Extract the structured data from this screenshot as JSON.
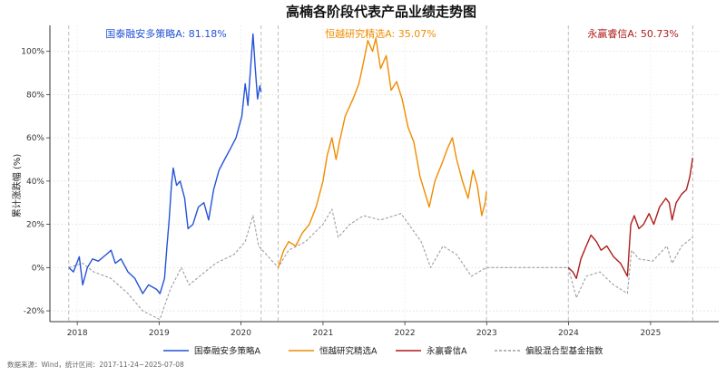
{
  "chart_data": {
    "type": "line",
    "title": "高楠各阶段代表产品业绩走势图",
    "ylabel": "累计涨跌幅 (%)",
    "ylim": [
      -0.25,
      1.12
    ],
    "xlim": [
      "2017-09-01",
      "2025-11-01"
    ],
    "x_ticks": [
      "2018",
      "2019",
      "2020",
      "2021",
      "2022",
      "2023",
      "2024",
      "2025"
    ],
    "y_ticks": [
      {
        "value": -0.2,
        "label": "-20%"
      },
      {
        "value": 0.0,
        "label": "0%"
      },
      {
        "value": 0.2,
        "label": "20%"
      },
      {
        "value": 0.4,
        "label": "40%"
      },
      {
        "value": 0.6,
        "label": "60%"
      },
      {
        "value": 0.8,
        "label": "80%"
      },
      {
        "value": 1.0,
        "label": "100%"
      }
    ],
    "grid": true,
    "legend_position": "bottom",
    "phase_boundaries": [
      "2017-11-24",
      "2020-03-31",
      "2020-06-15",
      "2022-12-31",
      "2023-12-31",
      "2025-07-08"
    ],
    "annotations": [
      {
        "label": "国泰融安多策略A: 81.18%",
        "color": "#2453d6",
        "anchor_x": "2019-02-01"
      },
      {
        "label": "恒越研究精选A: 35.07%",
        "color": "#f08c00",
        "anchor_x": "2021-09-15"
      },
      {
        "label": "永赢睿信A: 50.73%",
        "color": "#b01c1c",
        "anchor_x": "2024-10-15"
      }
    ],
    "series": [
      {
        "name": "国泰融安多策略A",
        "color": "#2453d6",
        "style": "solid",
        "points": [
          [
            "2017-11-24",
            0.0
          ],
          [
            "2017-12-15",
            -0.02
          ],
          [
            "2018-01-10",
            0.05
          ],
          [
            "2018-01-25",
            -0.08
          ],
          [
            "2018-02-15",
            0.0
          ],
          [
            "2018-03-10",
            0.04
          ],
          [
            "2018-04-05",
            0.03
          ],
          [
            "2018-05-10",
            0.06
          ],
          [
            "2018-06-01",
            0.08
          ],
          [
            "2018-06-20",
            0.02
          ],
          [
            "2018-07-15",
            0.04
          ],
          [
            "2018-08-15",
            -0.02
          ],
          [
            "2018-09-15",
            -0.05
          ],
          [
            "2018-10-20",
            -0.12
          ],
          [
            "2018-11-15",
            -0.08
          ],
          [
            "2018-12-20",
            -0.1
          ],
          [
            "2019-01-05",
            -0.12
          ],
          [
            "2019-01-25",
            -0.05
          ],
          [
            "2019-02-05",
            0.1
          ],
          [
            "2019-02-15",
            0.22
          ],
          [
            "2019-02-25",
            0.38
          ],
          [
            "2019-03-05",
            0.46
          ],
          [
            "2019-03-20",
            0.38
          ],
          [
            "2019-04-05",
            0.4
          ],
          [
            "2019-04-25",
            0.32
          ],
          [
            "2019-05-10",
            0.18
          ],
          [
            "2019-06-01",
            0.2
          ],
          [
            "2019-06-25",
            0.28
          ],
          [
            "2019-07-20",
            0.3
          ],
          [
            "2019-08-10",
            0.22
          ],
          [
            "2019-09-01",
            0.36
          ],
          [
            "2019-09-25",
            0.45
          ],
          [
            "2019-10-20",
            0.5
          ],
          [
            "2019-11-15",
            0.55
          ],
          [
            "2019-12-10",
            0.6
          ],
          [
            "2020-01-05",
            0.7
          ],
          [
            "2020-01-20",
            0.85
          ],
          [
            "2020-02-01",
            0.75
          ],
          [
            "2020-02-15",
            0.95
          ],
          [
            "2020-02-24",
            1.08
          ],
          [
            "2020-03-05",
            0.92
          ],
          [
            "2020-03-15",
            0.78
          ],
          [
            "2020-03-25",
            0.84
          ],
          [
            "2020-03-31",
            0.8118
          ]
        ]
      },
      {
        "name": "恒越研究精选A",
        "color": "#f08c00",
        "style": "solid",
        "points": [
          [
            "2020-06-15",
            0.0
          ],
          [
            "2020-07-10",
            0.08
          ],
          [
            "2020-08-01",
            0.12
          ],
          [
            "2020-09-01",
            0.1
          ],
          [
            "2020-10-01",
            0.16
          ],
          [
            "2020-11-01",
            0.2
          ],
          [
            "2020-12-01",
            0.28
          ],
          [
            "2021-01-01",
            0.4
          ],
          [
            "2021-01-20",
            0.52
          ],
          [
            "2021-02-10",
            0.6
          ],
          [
            "2021-02-28",
            0.5
          ],
          [
            "2021-03-15",
            0.58
          ],
          [
            "2021-04-10",
            0.7
          ],
          [
            "2021-05-15",
            0.78
          ],
          [
            "2021-06-10",
            0.85
          ],
          [
            "2021-07-01",
            0.95
          ],
          [
            "2021-07-20",
            1.05
          ],
          [
            "2021-08-10",
            1.0
          ],
          [
            "2021-08-25",
            1.06
          ],
          [
            "2021-09-15",
            0.92
          ],
          [
            "2021-10-10",
            0.98
          ],
          [
            "2021-11-01",
            0.82
          ],
          [
            "2021-11-25",
            0.86
          ],
          [
            "2021-12-20",
            0.78
          ],
          [
            "2022-01-15",
            0.65
          ],
          [
            "2022-02-10",
            0.58
          ],
          [
            "2022-03-10",
            0.42
          ],
          [
            "2022-04-20",
            0.28
          ],
          [
            "2022-05-15",
            0.4
          ],
          [
            "2022-06-15",
            0.48
          ],
          [
            "2022-07-10",
            0.55
          ],
          [
            "2022-08-01",
            0.6
          ],
          [
            "2022-08-20",
            0.5
          ],
          [
            "2022-09-15",
            0.4
          ],
          [
            "2022-10-10",
            0.32
          ],
          [
            "2022-11-01",
            0.45
          ],
          [
            "2022-11-20",
            0.38
          ],
          [
            "2022-12-10",
            0.24
          ],
          [
            "2022-12-25",
            0.3
          ],
          [
            "2022-12-31",
            0.3507
          ]
        ]
      },
      {
        "name": "永赢睿信A",
        "color": "#b01c1c",
        "style": "solid",
        "points": [
          [
            "2023-12-31",
            0.0
          ],
          [
            "2024-01-20",
            -0.02
          ],
          [
            "2024-02-05",
            -0.05
          ],
          [
            "2024-02-25",
            0.04
          ],
          [
            "2024-03-20",
            0.1
          ],
          [
            "2024-04-10",
            0.15
          ],
          [
            "2024-05-05",
            0.12
          ],
          [
            "2024-05-25",
            0.08
          ],
          [
            "2024-06-20",
            0.1
          ],
          [
            "2024-07-20",
            0.05
          ],
          [
            "2024-08-20",
            0.02
          ],
          [
            "2024-09-20",
            -0.04
          ],
          [
            "2024-10-05",
            0.2
          ],
          [
            "2024-10-20",
            0.24
          ],
          [
            "2024-11-10",
            0.18
          ],
          [
            "2024-12-01",
            0.2
          ],
          [
            "2024-12-25",
            0.25
          ],
          [
            "2025-01-15",
            0.2
          ],
          [
            "2025-02-10",
            0.28
          ],
          [
            "2025-03-10",
            0.32
          ],
          [
            "2025-03-25",
            0.3
          ],
          [
            "2025-04-07",
            0.22
          ],
          [
            "2025-04-25",
            0.3
          ],
          [
            "2025-05-20",
            0.34
          ],
          [
            "2025-06-10",
            0.36
          ],
          [
            "2025-06-25",
            0.42
          ],
          [
            "2025-07-08",
            0.5073
          ]
        ]
      },
      {
        "name": "偏股混合型基金指数",
        "color": "#9e9e9e",
        "style": "dashed",
        "points": [
          [
            "2017-11-24",
            0.0
          ],
          [
            "2018-01-25",
            0.02
          ],
          [
            "2018-03-15",
            -0.02
          ],
          [
            "2018-06-01",
            -0.05
          ],
          [
            "2018-08-15",
            -0.12
          ],
          [
            "2018-10-20",
            -0.2
          ],
          [
            "2019-01-04",
            -0.24
          ],
          [
            "2019-02-20",
            -0.1
          ],
          [
            "2019-04-10",
            0.0
          ],
          [
            "2019-05-15",
            -0.08
          ],
          [
            "2019-07-01",
            -0.04
          ],
          [
            "2019-09-10",
            0.02
          ],
          [
            "2019-12-01",
            0.06
          ],
          [
            "2020-01-20",
            0.12
          ],
          [
            "2020-02-24",
            0.24
          ],
          [
            "2020-03-20",
            0.1
          ],
          [
            "2020-06-15",
            0.0
          ],
          [
            "2020-08-01",
            0.08
          ],
          [
            "2020-10-15",
            0.12
          ],
          [
            "2021-01-01",
            0.2
          ],
          [
            "2021-02-10",
            0.27
          ],
          [
            "2021-03-10",
            0.14
          ],
          [
            "2021-05-01",
            0.2
          ],
          [
            "2021-07-01",
            0.24
          ],
          [
            "2021-09-15",
            0.22
          ],
          [
            "2021-12-15",
            0.25
          ],
          [
            "2022-03-15",
            0.12
          ],
          [
            "2022-04-26",
            0.0
          ],
          [
            "2022-06-20",
            0.1
          ],
          [
            "2022-08-20",
            0.06
          ],
          [
            "2022-10-25",
            -0.04
          ],
          [
            "2022-12-31",
            0.0
          ],
          [
            "2023-12-31",
            0.0
          ],
          [
            "2024-02-05",
            -0.14
          ],
          [
            "2024-03-20",
            -0.04
          ],
          [
            "2024-05-20",
            -0.02
          ],
          [
            "2024-07-20",
            -0.08
          ],
          [
            "2024-09-20",
            -0.12
          ],
          [
            "2024-10-08",
            0.08
          ],
          [
            "2024-11-10",
            0.04
          ],
          [
            "2025-01-10",
            0.03
          ],
          [
            "2025-03-15",
            0.1
          ],
          [
            "2025-04-07",
            0.02
          ],
          [
            "2025-05-20",
            0.1
          ],
          [
            "2025-07-08",
            0.14
          ]
        ]
      }
    ]
  },
  "footer": {
    "source": "数据来源：Wind，统计区间：2017-11-24~2025-07-08"
  }
}
